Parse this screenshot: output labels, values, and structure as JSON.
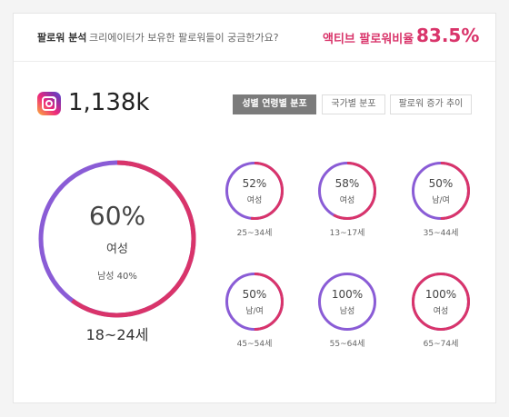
{
  "header": {
    "title": "팔로워 분석",
    "subtitle": "크리에이터가 보유한 팔로워들이 궁금한가요?",
    "active_rate_label": "액티브 팔로워비율",
    "active_rate_value": "83.5%"
  },
  "profile": {
    "icon": "instagram-icon",
    "followers": "1,138k"
  },
  "tabs": [
    {
      "label": "성별 연령별 분포",
      "active": true
    },
    {
      "label": "국가별 분포",
      "active": false
    },
    {
      "label": "팔로워 증가 추이",
      "active": false
    }
  ],
  "colors": {
    "female": "#d9346a",
    "male": "#8a5cd6",
    "accent": "#d9346a"
  },
  "main_group": {
    "pct": "60%",
    "gender": "여성",
    "sub": "남성 40%",
    "age": "18~24세",
    "female_share": 0.6
  },
  "groups": [
    {
      "pct": "52%",
      "gender": "여성",
      "age": "25~34세",
      "female_share": 0.52
    },
    {
      "pct": "58%",
      "gender": "여성",
      "age": "13~17세",
      "female_share": 0.58
    },
    {
      "pct": "50%",
      "gender": "남/여",
      "age": "35~44세",
      "female_share": 0.5
    },
    {
      "pct": "50%",
      "gender": "남/여",
      "age": "45~54세",
      "female_share": 0.5
    },
    {
      "pct": "100%",
      "gender": "남성",
      "age": "55~64세",
      "female_share": 0.0
    },
    {
      "pct": "100%",
      "gender": "여성",
      "age": "65~74세",
      "female_share": 1.0
    }
  ]
}
